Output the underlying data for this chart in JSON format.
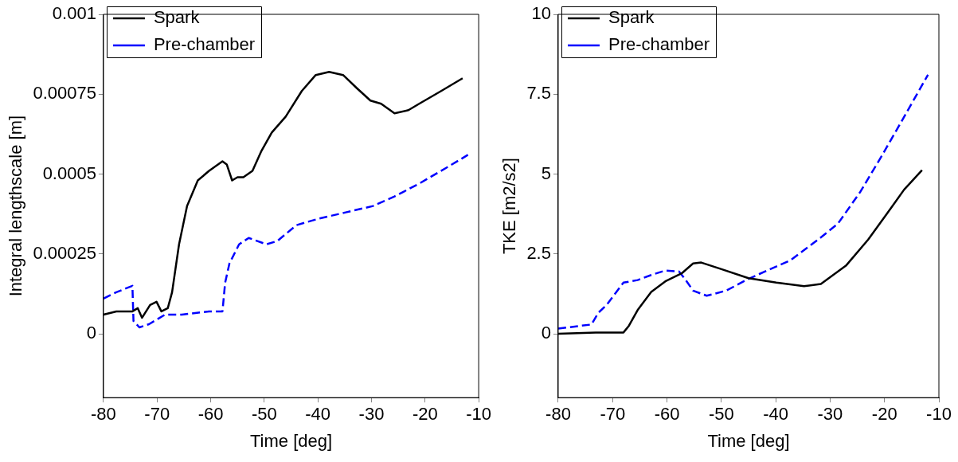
{
  "chart_data": [
    {
      "type": "line",
      "xlabel": "Time [deg]",
      "ylabel": "Integral lengthscale [m]",
      "xlim": [
        -80,
        -10
      ],
      "xticks": [
        -80,
        -70,
        -60,
        -50,
        -40,
        -30,
        -20,
        -10
      ],
      "ylim": [
        -0.0002,
        0.001
      ],
      "yticks": [
        0,
        0.00025,
        0.0005,
        0.00075,
        0.001
      ],
      "grid": false,
      "legend": "top left",
      "marker": "none",
      "series": [
        {
          "name": "Spark",
          "color": "#000000",
          "line_style": "solid",
          "x": [
            -80,
            -77.6,
            -74.6,
            -73.6,
            -72.8,
            -71.3,
            -70.1,
            -69.2,
            -68,
            -67.2,
            -65.9,
            -64.4,
            -62.4,
            -60.3,
            -57.8,
            -57,
            -56,
            -55,
            -53.9,
            -52.2,
            -50.6,
            -48.6,
            -46,
            -43,
            -40.4,
            -37.9,
            -35.3,
            -32.8,
            -30.2,
            -28.2,
            -25.7,
            -23.1,
            -21.1,
            -17,
            -13
          ],
          "values": [
            6e-05,
            7e-05,
            7e-05,
            8e-05,
            5e-05,
            9e-05,
            0.0001,
            7e-05,
            8e-05,
            0.00013,
            0.00028,
            0.0004,
            0.00048,
            0.00051,
            0.00054,
            0.00053,
            0.00048,
            0.00049,
            0.00049,
            0.00051,
            0.00057,
            0.00063,
            0.00068,
            0.00076,
            0.00081,
            0.00082,
            0.00081,
            0.00077,
            0.00073,
            0.00072,
            0.00069,
            0.0007,
            0.00072,
            0.00076,
            0.0008
          ]
        },
        {
          "name": "Pre-chamber",
          "color": "#0000ff",
          "line_style": "dashed",
          "x": [
            -80,
            -77.6,
            -74.6,
            -74.4,
            -73.3,
            -71.5,
            -68.5,
            -65.4,
            -60.3,
            -57.8,
            -57.3,
            -56.5,
            -54.7,
            -52.9,
            -49.6,
            -47.6,
            -44,
            -39.9,
            -34.8,
            -29.7,
            -25.7,
            -21.1,
            -16,
            -12
          ],
          "values": [
            0.00011,
            0.00013,
            0.00015,
            4e-05,
            2e-05,
            3e-05,
            6e-05,
            6e-05,
            7e-05,
            7e-05,
            0.00016,
            0.00022,
            0.00028,
            0.0003,
            0.00028,
            0.00029,
            0.00034,
            0.00036,
            0.00038,
            0.0004,
            0.00043,
            0.00047,
            0.00052,
            0.00056
          ]
        }
      ]
    },
    {
      "type": "line",
      "xlabel": "Time [deg]",
      "ylabel": "TKE [m2/s2]",
      "xlim": [
        -80,
        -10
      ],
      "xticks": [
        -80,
        -70,
        -60,
        -50,
        -40,
        -30,
        -20,
        -10
      ],
      "ylim": [
        -2,
        10
      ],
      "yticks": [
        0,
        2.5,
        5,
        7.5,
        10
      ],
      "grid": false,
      "legend": "top left",
      "marker": "none",
      "series": [
        {
          "name": "Spark",
          "color": "#000000",
          "line_style": "solid",
          "x": [
            -80,
            -73.1,
            -68,
            -67,
            -65.4,
            -62.9,
            -60.3,
            -57.3,
            -55.2,
            -53.7,
            -50.1,
            -45,
            -39.9,
            -34.8,
            -31.7,
            -27.1,
            -23,
            -19.5,
            -16.4,
            -13.1
          ],
          "values": [
            0,
            0.04,
            0.04,
            0.25,
            0.74,
            1.31,
            1.64,
            1.89,
            2.2,
            2.23,
            2.03,
            1.74,
            1.6,
            1.49,
            1.56,
            2.13,
            2.95,
            3.77,
            4.51,
            5.12
          ]
        },
        {
          "name": "Pre-chamber",
          "color": "#0000ff",
          "line_style": "dashed",
          "x": [
            -80,
            -73.9,
            -72.6,
            -71.1,
            -68,
            -65.4,
            -62.9,
            -60.3,
            -57.8,
            -56.7,
            -55.2,
            -52.7,
            -49.1,
            -45,
            -37.3,
            -32.2,
            -28.6,
            -24.5,
            -20.5,
            -16.9,
            -12
          ],
          "values": [
            0.16,
            0.29,
            0.66,
            0.9,
            1.6,
            1.68,
            1.84,
            1.98,
            1.95,
            1.72,
            1.35,
            1.19,
            1.35,
            1.72,
            2.3,
            2.95,
            3.44,
            4.43,
            5.57,
            6.64,
            8.11
          ]
        }
      ]
    }
  ]
}
